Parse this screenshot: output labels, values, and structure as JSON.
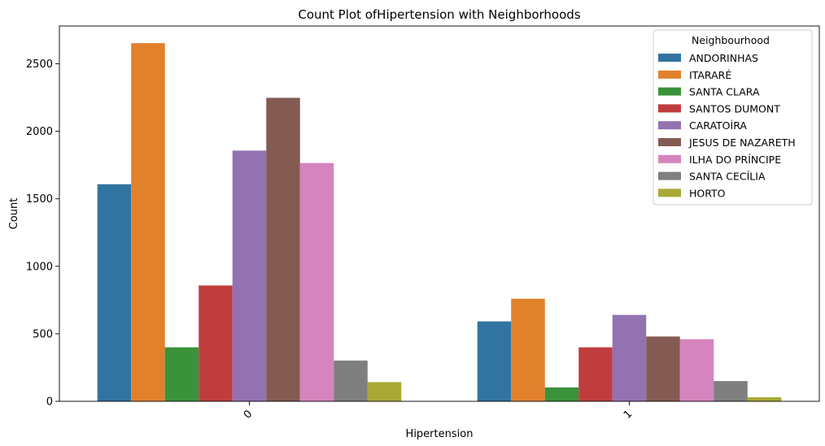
{
  "chart_data": {
    "type": "bar",
    "title": "Count Plot ofHipertension with Neighborhoods",
    "xlabel": "Hipertension",
    "ylabel": "Count",
    "categories": [
      "0",
      "1"
    ],
    "ylim": [
      0,
      2780
    ],
    "yticks": [
      "0",
      "500",
      "1000",
      "1500",
      "2000",
      "2500"
    ],
    "grid": false,
    "legend": {
      "title": "Neighbourhood",
      "placement": "top-right"
    },
    "series": [
      {
        "name": "ANDORINHAS",
        "color": "#3274a1",
        "values": [
          1608,
          592
        ]
      },
      {
        "name": "ITARARÉ",
        "color": "#e1812c",
        "values": [
          2653,
          760
        ]
      },
      {
        "name": "SANTA CLARA",
        "color": "#3a923a",
        "values": [
          400,
          103
        ]
      },
      {
        "name": "SANTOS DUMONT",
        "color": "#c03d3e",
        "values": [
          858,
          400
        ]
      },
      {
        "name": "CARATOÍRA",
        "color": "#9372b2",
        "values": [
          1857,
          640
        ]
      },
      {
        "name": "JESUS DE NAZARETH",
        "color": "#845b53",
        "values": [
          2248,
          480
        ]
      },
      {
        "name": "ILHA DO PRÍNCIPE",
        "color": "#d684bd",
        "values": [
          1765,
          460
        ]
      },
      {
        "name": "SANTA CECÍLIA",
        "color": "#7f7f7f",
        "values": [
          302,
          150
        ]
      },
      {
        "name": "HORTO",
        "color": "#a9aa35",
        "values": [
          142,
          30
        ]
      }
    ]
  }
}
